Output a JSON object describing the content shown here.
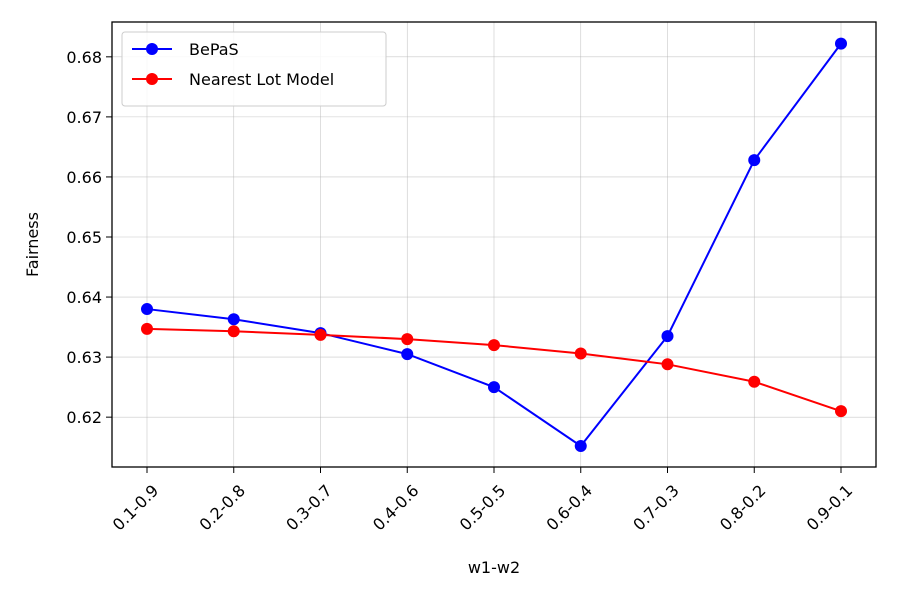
{
  "chart_data": {
    "type": "line",
    "title": "",
    "xlabel": "w1-w2",
    "ylabel": "Fairness",
    "categories": [
      "0.1-0.9",
      "0.2-0.8",
      "0.3-0.7",
      "0.4-0.6",
      "0.5-0.5",
      "0.6-0.4",
      "0.7-0.3",
      "0.8-0.2",
      "0.9-0.1"
    ],
    "series": [
      {
        "name": "BePaS",
        "color": "#0000ff",
        "values": [
          0.638,
          0.6363,
          0.634,
          0.6305,
          0.625,
          0.6152,
          0.6335,
          0.6628,
          0.6822
        ]
      },
      {
        "name": "Nearest Lot Model",
        "color": "#ff0000",
        "values": [
          0.6347,
          0.6343,
          0.6337,
          0.633,
          0.632,
          0.6306,
          0.6288,
          0.6259,
          0.621
        ]
      }
    ],
    "ylim": [
      0.6117,
      0.6858
    ],
    "yticks": [
      0.62,
      0.63,
      0.64,
      0.65,
      0.66,
      0.67,
      0.68
    ],
    "ytick_labels": [
      "0.62",
      "0.63",
      "0.64",
      "0.65",
      "0.66",
      "0.67",
      "0.68"
    ],
    "grid": true,
    "legend_position": "top-left",
    "marker": "circle"
  }
}
